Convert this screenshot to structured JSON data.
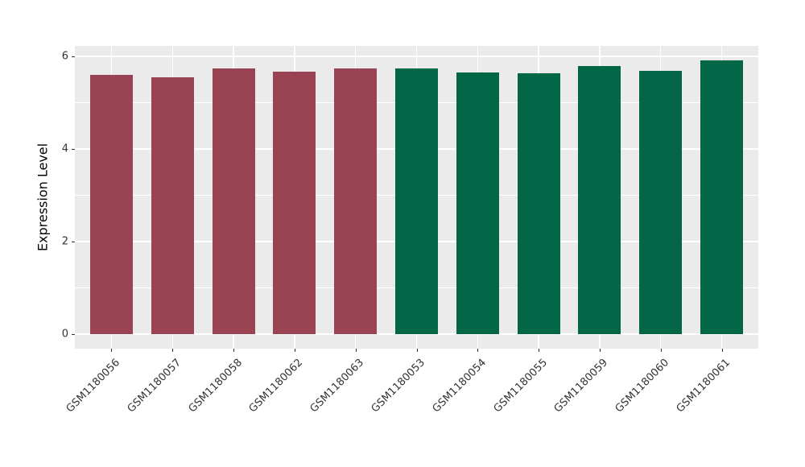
{
  "figure": {
    "background_color": "#FFFFFF",
    "panel_background_color": "#EBEBEB",
    "grid_color": "#FFFFFF",
    "axis_text_color": "#333333",
    "axis_title_color": "#000000"
  },
  "chart_data": {
    "type": "bar",
    "title": "",
    "xlabel": "",
    "ylabel": "Expression Level",
    "categories": [
      "GSM1180056",
      "GSM1180057",
      "GSM1180058",
      "GSM1180062",
      "GSM1180063",
      "GSM1180053",
      "GSM1180054",
      "GSM1180055",
      "GSM1180059",
      "GSM1180060",
      "GSM1180061"
    ],
    "values": [
      5.6,
      5.55,
      5.75,
      5.68,
      5.74,
      5.74,
      5.65,
      5.64,
      5.8,
      5.69,
      5.92
    ],
    "bar_groups": [
      "red_group",
      "red_group",
      "red_group",
      "red_group",
      "red_group",
      "green_group",
      "green_group",
      "green_group",
      "green_group",
      "green_group",
      "green_group"
    ],
    "group_colors": {
      "red_group": "#9A4453",
      "green_group": "#026647"
    },
    "y_ticks_major": [
      0,
      2,
      4,
      6
    ],
    "y_ticks_minor": [
      1,
      3,
      5
    ],
    "ylim": [
      -0.31,
      6.23
    ],
    "x_tick_rotation_deg": 45,
    "grid": "horizontal major+minor, vertical major at category centers",
    "legend": "none"
  }
}
